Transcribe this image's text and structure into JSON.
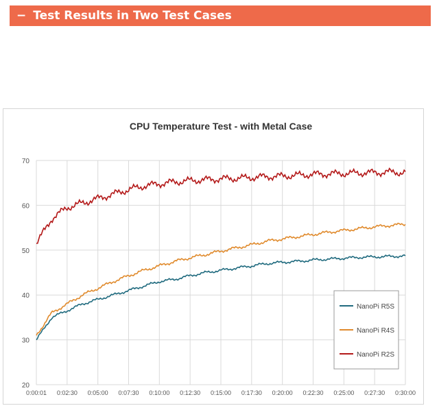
{
  "header": {
    "dash": "−",
    "title": "Test Results in Two Test Cases"
  },
  "chart_data": {
    "type": "line",
    "title": "CPU Temperature Test - with Metal Case",
    "xlabel": "",
    "ylabel": "",
    "ylim": [
      20,
      70
    ],
    "yticks": [
      20,
      30,
      40,
      50,
      60,
      70
    ],
    "x_ticks": [
      "0:00:01",
      "0:02:30",
      "0:05:00",
      "0:07:30",
      "0:10:00",
      "0:12:30",
      "0:15:00",
      "0:17:30",
      "0:20:00",
      "0:22:30",
      "0:25:00",
      "0:27:30",
      "0:30:00"
    ],
    "grid": true,
    "legend_position": "bottom-right",
    "x": [
      "0:00:01",
      "0:01:15",
      "0:02:30",
      "0:03:45",
      "0:05:00",
      "0:06:15",
      "0:07:30",
      "0:08:45",
      "0:10:00",
      "0:11:15",
      "0:12:30",
      "0:13:45",
      "0:15:00",
      "0:16:15",
      "0:17:30",
      "0:18:45",
      "0:20:00",
      "0:21:15",
      "0:22:30",
      "0:23:45",
      "0:25:00",
      "0:26:15",
      "0:27:30",
      "0:28:45",
      "0:30:00"
    ],
    "series": [
      {
        "name": "NanoPi R5S",
        "color": "#1f6a7e",
        "values": [
          30,
          35,
          36.5,
          38,
          39,
          40,
          41,
          42,
          43,
          43.5,
          44.3,
          45,
          45.5,
          46,
          46.5,
          47,
          47.3,
          47.5,
          47.8,
          48,
          48.2,
          48.4,
          48.5,
          48.6,
          48.7
        ]
      },
      {
        "name": "NanoPi R4S",
        "color": "#e08a2c",
        "values": [
          31,
          36,
          38,
          40,
          41.5,
          43,
          44.3,
          45.5,
          46.5,
          47.5,
          48.3,
          49,
          49.8,
          50.5,
          51.2,
          52,
          52.5,
          53,
          53.5,
          54,
          54.4,
          54.8,
          55.2,
          55.5,
          55.8
        ]
      },
      {
        "name": "NanoPi R2S",
        "color": "#b31818",
        "values": [
          51.5,
          57,
          59.5,
          60.5,
          61.5,
          62.5,
          63.5,
          64.3,
          64.8,
          65.2,
          65.5,
          65.7,
          65.9,
          66,
          66.2,
          66.4,
          66.5,
          66.7,
          66.9,
          67,
          67.1,
          67.2,
          67.3,
          67.4,
          67.3
        ]
      }
    ]
  }
}
